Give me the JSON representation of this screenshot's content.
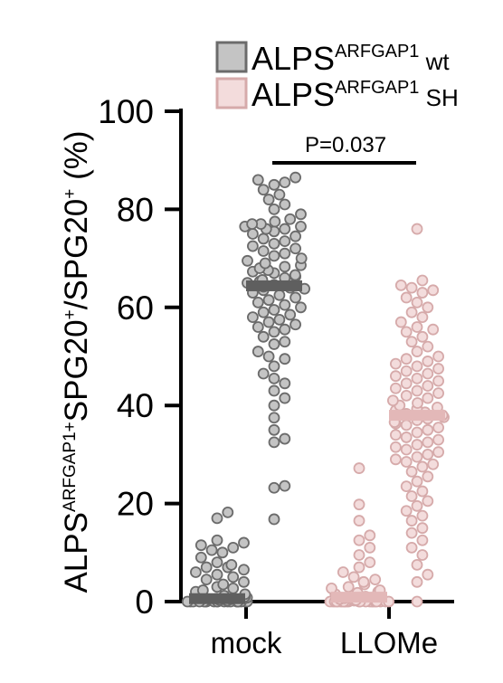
{
  "chart_data": {
    "type": "scatter",
    "ylim": [
      0,
      100
    ],
    "yticks": [
      "0",
      "20",
      "40",
      "60",
      "80",
      "100"
    ],
    "ylabel": {
      "prefix": "ALPS",
      "sup1": "ARFGAP1+",
      "middle": "SPG20",
      "sup2": "+",
      "slash": "/SPG20",
      "sup3": "+",
      "unit": " (%)"
    },
    "categories": [
      "mock",
      "LLOMe"
    ],
    "series": [
      {
        "name_main": "ALPS",
        "name_sup": "ARFGAP1",
        "name_suffix": " wt",
        "fill": "#c4c4c4",
        "stroke": "#6b6b6b",
        "mean_color": "#5f5f5f",
        "means": [
          0.6,
          64.4
        ],
        "points": [
          [
            0,
            0,
            0,
            0,
            0,
            0,
            0,
            0,
            0,
            0,
            0,
            0,
            0,
            0,
            0,
            0,
            0,
            0,
            0,
            0,
            0.2,
            0.3,
            0.5,
            0.6,
            0.8,
            1,
            1.2,
            1.5,
            1.8,
            2,
            2.3,
            2.7,
            3,
            3.5,
            4,
            4.5,
            5,
            5.5,
            6,
            6.5,
            7,
            7,
            7.5,
            8,
            9,
            10,
            10.5,
            11,
            11.5,
            12,
            12.5,
            17,
            18.2
          ],
          [
            16.8,
            23.2,
            23.6,
            32.5,
            33.2,
            35,
            37.5,
            40,
            41.5,
            43,
            44.5,
            45.5,
            46.5,
            48,
            49.5,
            50,
            51,
            52.5,
            53,
            54,
            55,
            55.5,
            56,
            56.5,
            57,
            57.5,
            58,
            58.5,
            59,
            59.5,
            60,
            60.5,
            61,
            61.5,
            62,
            62.5,
            63,
            63.5,
            63.8,
            64,
            64.2,
            64.6,
            65,
            65.3,
            65.6,
            66,
            66.3,
            66.6,
            67,
            67.3,
            67.6,
            68,
            68.3,
            68.6,
            69,
            69.5,
            70,
            70.5,
            71,
            71.5,
            72,
            72.5,
            73,
            73.5,
            74,
            74.5,
            75,
            75.5,
            76,
            76,
            76.5,
            76.5,
            77,
            77,
            77.5,
            78,
            79,
            80,
            81,
            82,
            83,
            84,
            85,
            85.5,
            86,
            86.5
          ]
        ]
      },
      {
        "name_main": "ALPS",
        "name_sup": "ARFGAP1",
        "name_suffix": " SH",
        "fill": "#f3dcdc",
        "stroke": "#d6aaaa",
        "mean_color": "#e3b8b8",
        "means": [
          0.9,
          38.0
        ],
        "points": [
          [
            0,
            0,
            0,
            0,
            0,
            0,
            0,
            0,
            0,
            0,
            0,
            0,
            0,
            0,
            0,
            0,
            0,
            0,
            0,
            0,
            0,
            0,
            0.2,
            0.3,
            0.5,
            0.7,
            1,
            1.2,
            1.5,
            1.8,
            2,
            2.3,
            2.7,
            3,
            3.5,
            4,
            4.5,
            5,
            6,
            7,
            8,
            9.5,
            11,
            12.5,
            13.5,
            16.5,
            19.8,
            27.2
          ],
          [
            0,
            4,
            5.5,
            7.5,
            9.5,
            11,
            12.5,
            14,
            15,
            16.5,
            17.5,
            18.5,
            19.5,
            20.5,
            21.5,
            22.5,
            23.5,
            24.5,
            25.5,
            26.5,
            27.5,
            28,
            28.5,
            29,
            29.5,
            30,
            30.5,
            31,
            31.5,
            32,
            32.5,
            33,
            33.5,
            34,
            34.5,
            35,
            35.5,
            36,
            36.3,
            36.6,
            37,
            37.3,
            37.6,
            38,
            38.3,
            38.6,
            39,
            39.3,
            39.6,
            40,
            40.5,
            41,
            41.5,
            42,
            42.5,
            43,
            43.5,
            44,
            44.5,
            45,
            45.5,
            46,
            46.5,
            47,
            47.5,
            48,
            48.5,
            49,
            49.5,
            50,
            51,
            52,
            53,
            54,
            55,
            55.5,
            56,
            57,
            58,
            59,
            60,
            61,
            62,
            63,
            63.5,
            64,
            64.5,
            65.5,
            76
          ]
        ]
      }
    ],
    "annotation": {
      "text": "P=0.037",
      "between": [
        64.4,
        38.0
      ]
    }
  }
}
